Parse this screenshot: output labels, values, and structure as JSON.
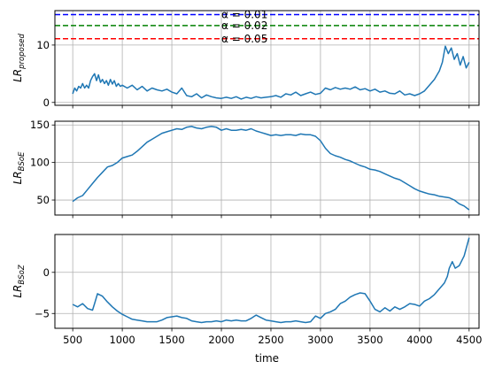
{
  "chart_data": [
    {
      "type": "line",
      "ylabel_main": "LR",
      "ylabel_sub": "proposed",
      "xlim": [
        320,
        4600
      ],
      "ylim": [
        -0.5,
        16
      ],
      "yticks": [
        0,
        10
      ],
      "grid": true,
      "series": [
        {
          "color": "#1f77b4",
          "x": [
            500,
            520,
            540,
            560,
            580,
            600,
            620,
            640,
            660,
            680,
            700,
            720,
            740,
            760,
            780,
            800,
            820,
            840,
            860,
            880,
            900,
            920,
            940,
            960,
            980,
            1000,
            1050,
            1100,
            1150,
            1200,
            1250,
            1300,
            1350,
            1400,
            1450,
            1500,
            1550,
            1600,
            1650,
            1700,
            1750,
            1800,
            1850,
            1900,
            1950,
            2000,
            2050,
            2100,
            2150,
            2200,
            2250,
            2300,
            2350,
            2400,
            2450,
            2500,
            2550,
            2600,
            2650,
            2700,
            2750,
            2800,
            2850,
            2900,
            2950,
            3000,
            3050,
            3100,
            3150,
            3200,
            3250,
            3300,
            3350,
            3400,
            3450,
            3500,
            3550,
            3600,
            3650,
            3700,
            3750,
            3800,
            3850,
            3900,
            3950,
            4000,
            4050,
            4100,
            4150,
            4200,
            4230,
            4260,
            4290,
            4320,
            4350,
            4380,
            4410,
            4440,
            4470,
            4500
          ],
          "values": [
            1.5,
            2.5,
            2.0,
            2.8,
            2.5,
            3.3,
            2.5,
            3.0,
            2.5,
            3.8,
            4.5,
            5.0,
            3.8,
            4.8,
            3.5,
            4.0,
            3.3,
            3.8,
            3.0,
            4.0,
            3.2,
            3.8,
            2.8,
            3.3,
            2.8,
            3.0,
            2.5,
            3.0,
            2.2,
            2.8,
            2.0,
            2.5,
            2.2,
            2.0,
            2.3,
            1.8,
            1.5,
            2.5,
            1.2,
            1.0,
            1.5,
            0.8,
            1.3,
            1.0,
            0.8,
            0.7,
            0.9,
            0.7,
            1.0,
            0.6,
            0.9,
            0.7,
            1.0,
            0.8,
            0.9,
            1.0,
            1.2,
            0.9,
            1.5,
            1.3,
            1.8,
            1.2,
            1.5,
            1.8,
            1.4,
            1.6,
            2.5,
            2.2,
            2.6,
            2.3,
            2.5,
            2.3,
            2.7,
            2.2,
            2.4,
            2.0,
            2.3,
            1.8,
            2.0,
            1.6,
            1.5,
            2.0,
            1.3,
            1.5,
            1.2,
            1.5,
            2.0,
            3.0,
            4.0,
            5.5,
            7.0,
            9.8,
            8.5,
            9.5,
            7.5,
            8.5,
            6.5,
            8.0,
            6.0,
            7.0
          ]
        }
      ],
      "hlines": [
        {
          "y": 15.3,
          "color": "#0000ff",
          "label": "α = 0.01"
        },
        {
          "y": 13.4,
          "color": "#008000",
          "label": "α = 0.02"
        },
        {
          "y": 11.1,
          "color": "#ff0000",
          "label": "α = 0.05"
        }
      ]
    },
    {
      "type": "line",
      "ylabel_main": "LR",
      "ylabel_sub": "BSoE",
      "xlim": [
        320,
        4600
      ],
      "ylim": [
        30,
        155
      ],
      "yticks": [
        50,
        100,
        150
      ],
      "grid": true,
      "series": [
        {
          "color": "#1f77b4",
          "x": [
            500,
            550,
            600,
            650,
            700,
            750,
            800,
            850,
            900,
            950,
            1000,
            1050,
            1100,
            1150,
            1200,
            1250,
            1300,
            1350,
            1400,
            1450,
            1500,
            1550,
            1600,
            1650,
            1700,
            1750,
            1800,
            1850,
            1900,
            1950,
            2000,
            2050,
            2100,
            2150,
            2200,
            2250,
            2300,
            2350,
            2400,
            2450,
            2500,
            2550,
            2600,
            2650,
            2700,
            2750,
            2800,
            2850,
            2900,
            2950,
            3000,
            3050,
            3100,
            3150,
            3200,
            3250,
            3300,
            3350,
            3400,
            3450,
            3500,
            3550,
            3600,
            3650,
            3700,
            3750,
            3800,
            3850,
            3900,
            3950,
            4000,
            4050,
            4100,
            4150,
            4200,
            4250,
            4300,
            4350,
            4400,
            4450,
            4500
          ],
          "values": [
            48,
            53,
            56,
            64,
            72,
            80,
            87,
            94,
            96,
            100,
            106,
            108,
            110,
            115,
            121,
            127,
            131,
            135,
            139,
            141,
            143,
            145,
            144,
            147,
            148,
            146,
            145,
            147,
            148,
            147,
            143,
            145,
            143,
            143,
            144,
            143,
            145,
            142,
            140,
            138,
            136,
            137,
            136,
            137,
            137,
            136,
            138,
            137,
            137,
            135,
            129,
            119,
            112,
            109,
            107,
            104,
            102,
            99,
            96,
            94,
            91,
            90,
            88,
            85,
            82,
            79,
            77,
            73,
            69,
            65,
            62,
            60,
            58,
            57,
            55,
            54,
            53,
            50,
            45,
            42,
            37
          ]
        }
      ]
    },
    {
      "type": "line",
      "ylabel_main": "LR",
      "ylabel_sub": "BSoZ",
      "xlim": [
        320,
        4600
      ],
      "ylim": [
        -6.8,
        4.6
      ],
      "yticks": [
        -5,
        0
      ],
      "xticks": [
        500,
        1000,
        1500,
        2000,
        2500,
        3000,
        3500,
        4000,
        4500
      ],
      "xlabel": "time",
      "grid": true,
      "series": [
        {
          "color": "#1f77b4",
          "x": [
            500,
            550,
            600,
            650,
            700,
            720,
            750,
            800,
            850,
            900,
            950,
            1000,
            1050,
            1100,
            1150,
            1200,
            1250,
            1300,
            1350,
            1400,
            1450,
            1500,
            1550,
            1600,
            1650,
            1700,
            1750,
            1800,
            1850,
            1900,
            1950,
            2000,
            2050,
            2100,
            2150,
            2200,
            2250,
            2300,
            2350,
            2400,
            2450,
            2500,
            2550,
            2600,
            2650,
            2700,
            2750,
            2800,
            2850,
            2900,
            2950,
            3000,
            3050,
            3100,
            3150,
            3200,
            3250,
            3300,
            3350,
            3400,
            3450,
            3500,
            3550,
            3600,
            3650,
            3700,
            3750,
            3800,
            3850,
            3900,
            3950,
            4000,
            4050,
            4100,
            4150,
            4200,
            4250,
            4280,
            4300,
            4330,
            4360,
            4400,
            4450,
            4500
          ],
          "values": [
            -3.9,
            -4.2,
            -3.8,
            -4.4,
            -4.6,
            -3.8,
            -2.6,
            -2.9,
            -3.6,
            -4.2,
            -4.7,
            -5.1,
            -5.4,
            -5.7,
            -5.8,
            -5.9,
            -6.0,
            -6.0,
            -6.0,
            -5.8,
            -5.5,
            -5.4,
            -5.3,
            -5.5,
            -5.6,
            -5.9,
            -6.0,
            -6.1,
            -6.0,
            -6.0,
            -5.9,
            -6.0,
            -5.8,
            -5.9,
            -5.8,
            -5.9,
            -5.9,
            -5.6,
            -5.2,
            -5.5,
            -5.8,
            -5.9,
            -6.0,
            -6.1,
            -6.0,
            -6.0,
            -5.9,
            -6.0,
            -6.1,
            -6.0,
            -5.3,
            -5.6,
            -5.0,
            -4.8,
            -4.5,
            -3.8,
            -3.5,
            -3.0,
            -2.7,
            -2.5,
            -2.6,
            -3.5,
            -4.5,
            -4.8,
            -4.3,
            -4.7,
            -4.2,
            -4.5,
            -4.2,
            -3.8,
            -3.9,
            -4.1,
            -3.5,
            -3.2,
            -2.7,
            -2.0,
            -1.3,
            -0.5,
            0.5,
            1.3,
            0.5,
            0.8,
            2.0,
            4.2
          ]
        }
      ]
    }
  ]
}
